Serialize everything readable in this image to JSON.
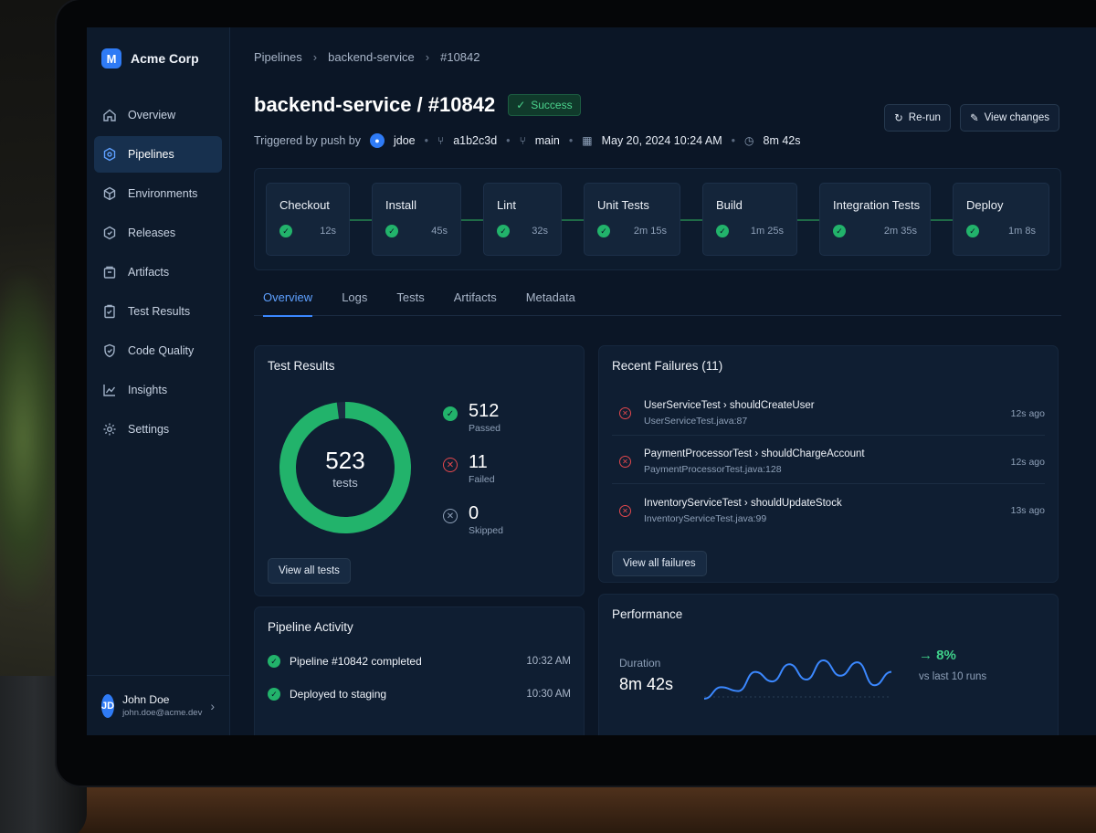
{
  "brand": {
    "name": "Acme Corp",
    "logo_letter": "M"
  },
  "sidebar": {
    "items": [
      {
        "label": "Overview",
        "icon": "home-icon"
      },
      {
        "label": "Pipelines",
        "icon": "pipeline-icon",
        "active": true
      },
      {
        "label": "Environments",
        "icon": "environment-icon"
      },
      {
        "label": "Releases",
        "icon": "release-icon"
      },
      {
        "label": "Artifacts",
        "icon": "artifact-icon"
      },
      {
        "label": "Test Results",
        "icon": "test-results-icon"
      },
      {
        "label": "Code Quality",
        "icon": "shield-icon"
      },
      {
        "label": "Insights",
        "icon": "chart-icon"
      },
      {
        "label": "Settings",
        "icon": "gear-icon"
      }
    ],
    "user": {
      "initials": "JD",
      "name": "John Doe",
      "email": "john.doe@acme.dev"
    }
  },
  "breadcrumb": [
    "Pipelines",
    "backend-service",
    "#10842"
  ],
  "header": {
    "title": "backend-service / #10842",
    "status": "Success",
    "rerun_label": "Re-run",
    "view_changes_label": "View changes",
    "triggered_by": "Triggered by push by",
    "user": "jdoe",
    "commit": "a1b2c3d",
    "branch": "main",
    "datetime": "May 20, 2024 10:24 AM",
    "duration": "8m 42s"
  },
  "stages": [
    {
      "name": "Checkout",
      "time": "12s"
    },
    {
      "name": "Install",
      "time": "45s"
    },
    {
      "name": "Lint",
      "time": "32s"
    },
    {
      "name": "Unit Tests",
      "time": "2m 15s"
    },
    {
      "name": "Build",
      "time": "1m 25s"
    },
    {
      "name": "Integration Tests",
      "time": "2m 35s"
    },
    {
      "name": "Deploy",
      "time": "1m 8s"
    }
  ],
  "tabs": [
    "Overview",
    "Logs",
    "Tests",
    "Artifacts",
    "Metadata"
  ],
  "test_results": {
    "title": "Test Results",
    "total": "523",
    "total_label": "tests",
    "passed": "512",
    "passed_label": "Passed",
    "failed": "11",
    "failed_label": "Failed",
    "skipped": "0",
    "skipped_label": "Skipped",
    "button": "View all tests",
    "colors": {
      "passed": "#22b36b",
      "failed": "#e5484d",
      "skipped": "#8ea0b8"
    }
  },
  "failures": {
    "title": "Recent Failures (11)",
    "items": [
      {
        "name": "UserServiceTest › shouldCreateUser",
        "file": "UserServiceTest.java:87",
        "time": "12s ago"
      },
      {
        "name": "PaymentProcessorTest › shouldChargeAccount",
        "file": "PaymentProcessorTest.java:128",
        "time": "12s ago"
      },
      {
        "name": "InventoryServiceTest › shouldUpdateStock",
        "file": "InventoryServiceTest.java:99",
        "time": "13s ago"
      }
    ],
    "button": "View all failures"
  },
  "activity": {
    "title": "Pipeline Activity",
    "items": [
      {
        "label": "Pipeline #10842 completed",
        "time": "10:32 AM"
      },
      {
        "label": "Deployed to staging",
        "time": "10:30 AM"
      }
    ]
  },
  "performance": {
    "title": "Performance",
    "metric_label": "Duration",
    "metric_value": "8m 42s",
    "delta": "8%",
    "delta_note": "vs last 10 runs",
    "spark_values": [
      8,
      14,
      12,
      22,
      17,
      26,
      18,
      28,
      20,
      27,
      15,
      22
    ]
  }
}
